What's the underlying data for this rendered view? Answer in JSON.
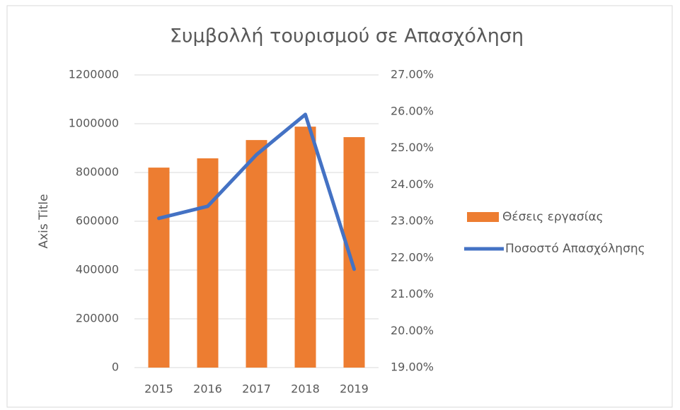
{
  "chart_data": {
    "type": "bar_line",
    "title": "Συμβολλή τουρισμού σε Απασχόληση",
    "y_axis_title": "Axis Title",
    "categories": [
      "2015",
      "2016",
      "2017",
      "2018",
      "2019"
    ],
    "series": [
      {
        "name": "Θέσεις εργασίας",
        "type": "bar",
        "color": "#ED7D31",
        "values": [
          820000,
          858000,
          933000,
          988000,
          945000
        ]
      },
      {
        "name": "Ποσοστό Απασχόλησης",
        "type": "line",
        "axis": "y2",
        "color": "#4472C4",
        "values": [
          23.08,
          23.41,
          24.82,
          25.92,
          21.69
        ]
      }
    ],
    "ylim": [
      0,
      1200000
    ],
    "yticks": [
      0,
      200000,
      400000,
      600000,
      800000,
      1000000,
      1200000
    ],
    "y2lim": [
      19,
      27
    ],
    "y2ticks": [
      {
        "value": 19,
        "label": "19.00%"
      },
      {
        "value": 20,
        "label": "20.00%"
      },
      {
        "value": 21,
        "label": "21.00%"
      },
      {
        "value": 22,
        "label": "22.00%"
      },
      {
        "value": 23,
        "label": "23.00%"
      },
      {
        "value": 24,
        "label": "24.00%"
      },
      {
        "value": 25,
        "label": "25.00%"
      },
      {
        "value": 26,
        "label": "26.00%"
      },
      {
        "value": 27,
        "label": "27.00%"
      }
    ],
    "grid": true,
    "legend": "right"
  }
}
